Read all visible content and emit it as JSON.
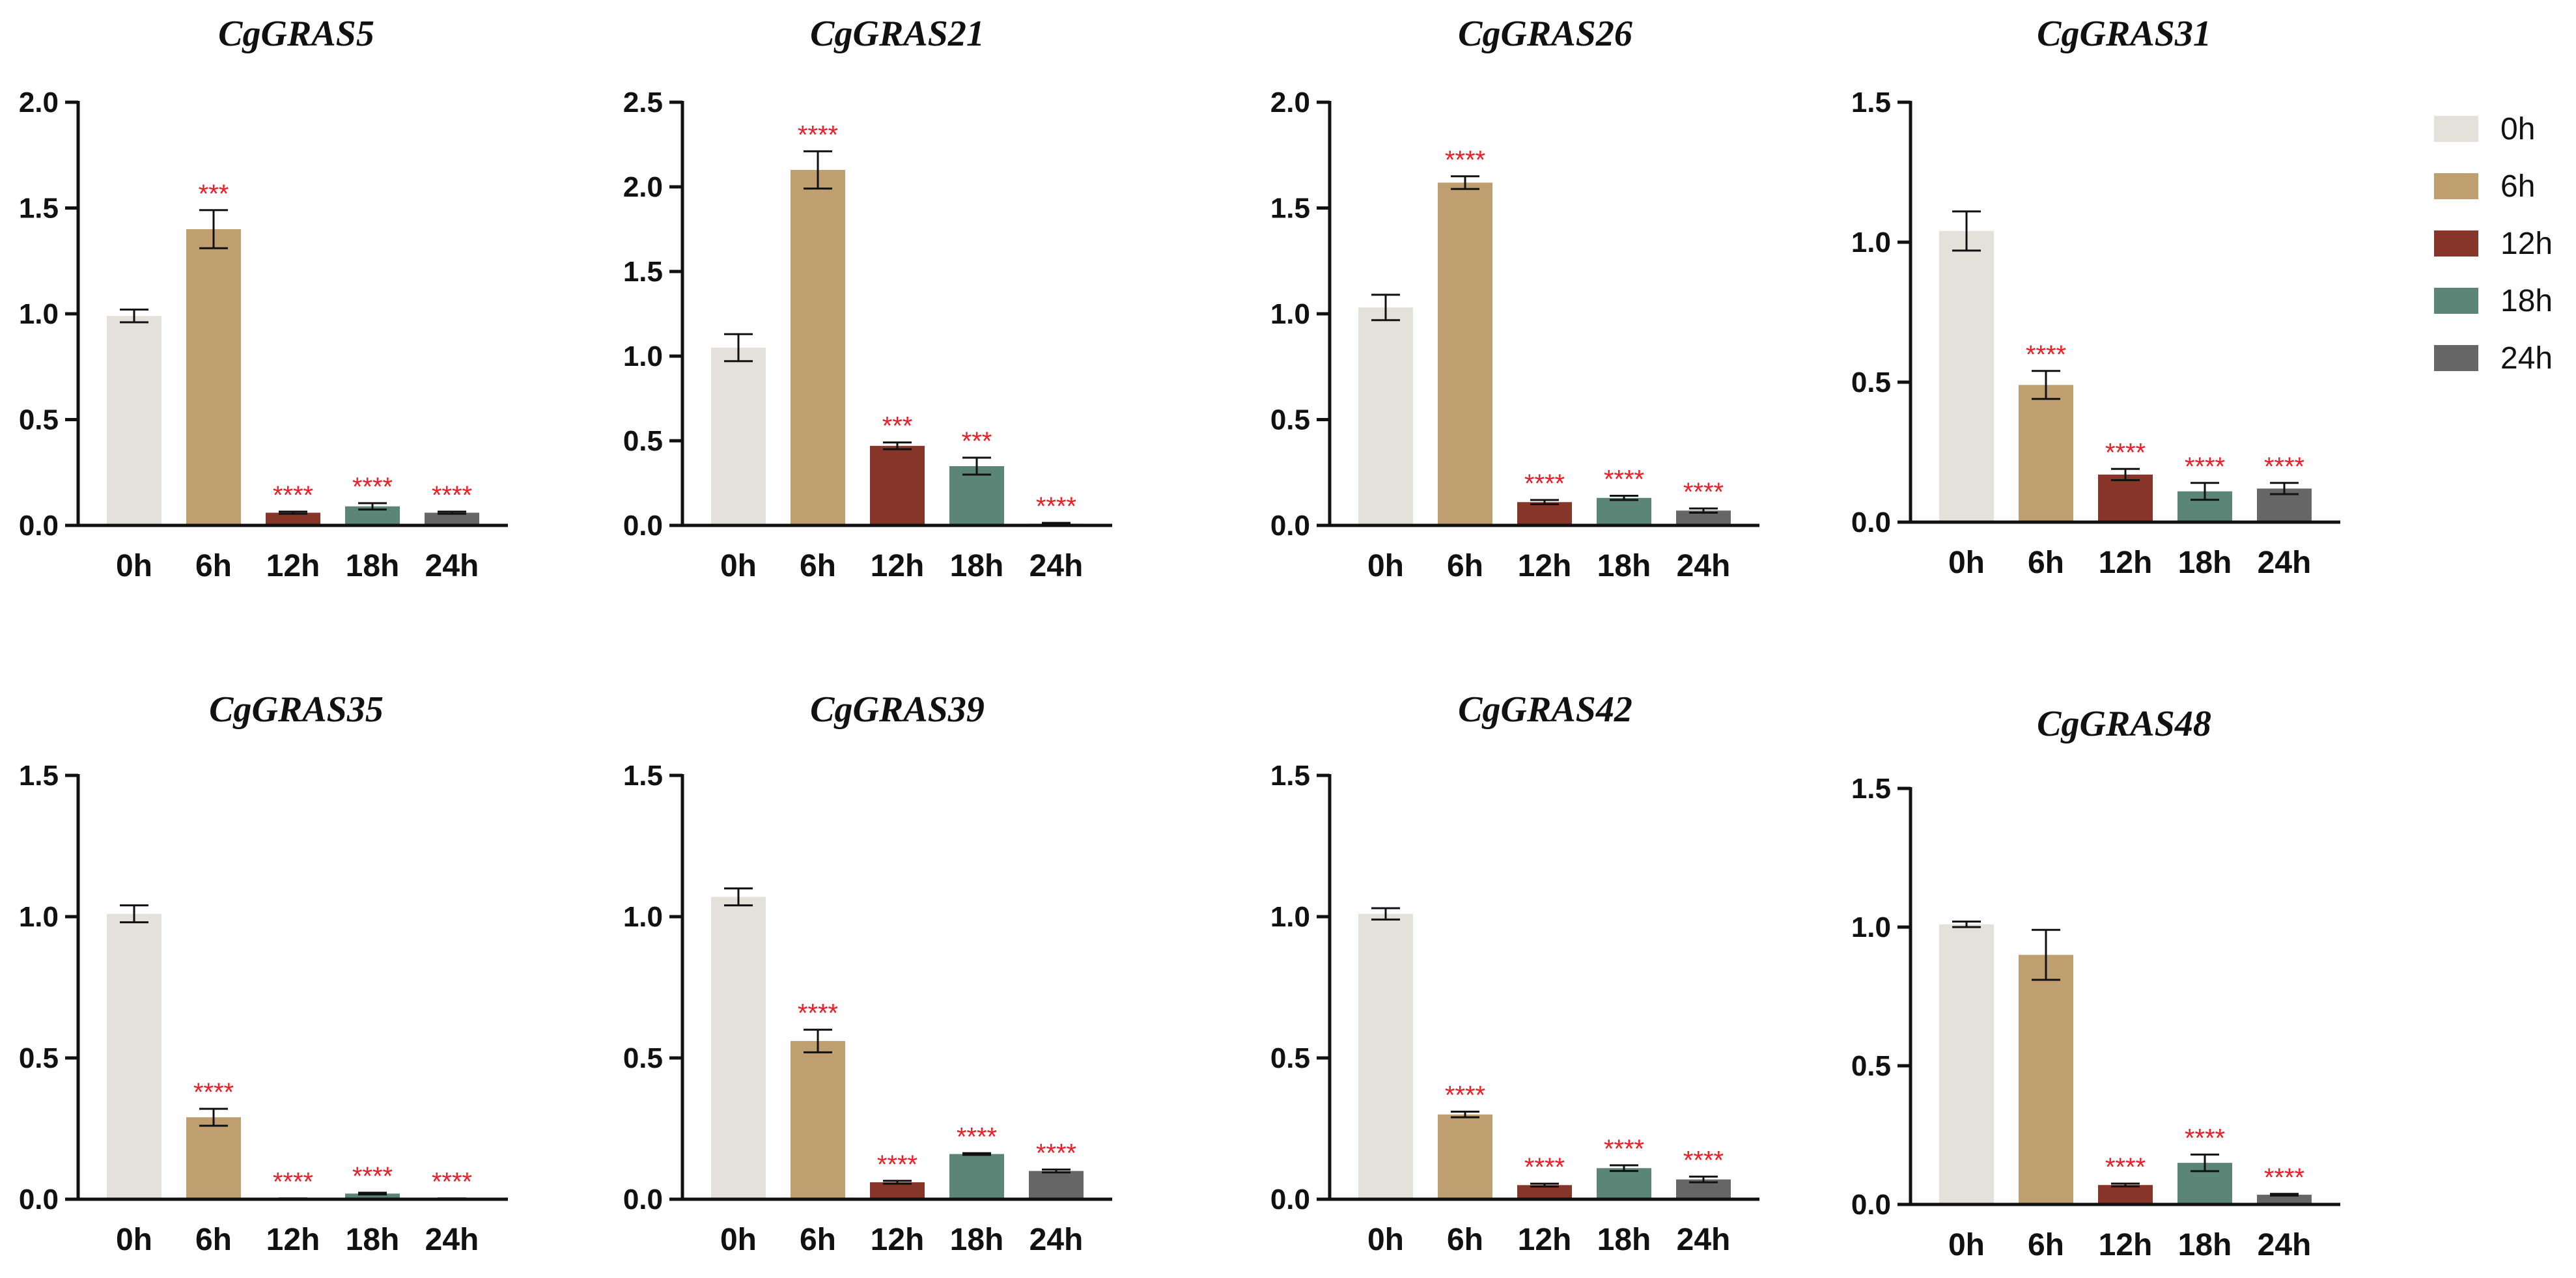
{
  "chart_data": [
    {
      "type": "bar",
      "title": "CgGRAS5",
      "categories": [
        "0h",
        "6h",
        "12h",
        "18h",
        "24h"
      ],
      "ylim": [
        0,
        2.0
      ],
      "yticks": [
        "0.0",
        "0.5",
        "1.0",
        "1.5",
        "2.0"
      ],
      "values": [
        0.99,
        1.4,
        0.06,
        0.09,
        0.06
      ],
      "errors": [
        0.03,
        0.09,
        0.005,
        0.015,
        0.005
      ],
      "significance": [
        "",
        "***",
        "****",
        "****",
        "****"
      ]
    },
    {
      "type": "bar",
      "title": "CgGRAS21",
      "categories": [
        "0h",
        "6h",
        "12h",
        "18h",
        "24h"
      ],
      "ylim": [
        0,
        2.5
      ],
      "yticks": [
        "0.0",
        "0.5",
        "1.0",
        "1.5",
        "2.0",
        "2.5"
      ],
      "values": [
        1.05,
        2.1,
        0.47,
        0.35,
        0.01
      ],
      "errors": [
        0.08,
        0.11,
        0.02,
        0.05,
        0.005
      ],
      "significance": [
        "",
        "****",
        "***",
        "***",
        "****"
      ]
    },
    {
      "type": "bar",
      "title": "CgGRAS26",
      "categories": [
        "0h",
        "6h",
        "12h",
        "18h",
        "24h"
      ],
      "ylim": [
        0,
        2.0
      ],
      "yticks": [
        "0.0",
        "0.5",
        "1.0",
        "1.5",
        "2.0"
      ],
      "values": [
        1.03,
        1.62,
        0.11,
        0.13,
        0.07
      ],
      "errors": [
        0.06,
        0.03,
        0.01,
        0.01,
        0.01
      ],
      "significance": [
        "",
        "****",
        "****",
        "****",
        "****"
      ]
    },
    {
      "type": "bar",
      "title": "CgGRAS31",
      "categories": [
        "0h",
        "6h",
        "12h",
        "18h",
        "24h"
      ],
      "ylim": [
        0,
        1.5
      ],
      "yticks": [
        "0.0",
        "0.5",
        "1.0",
        "1.5"
      ],
      "values": [
        1.04,
        0.49,
        0.17,
        0.11,
        0.12
      ],
      "errors": [
        0.07,
        0.05,
        0.02,
        0.03,
        0.02
      ],
      "significance": [
        "",
        "****",
        "****",
        "****",
        "****"
      ]
    },
    {
      "type": "bar",
      "title": "CgGRAS35",
      "categories": [
        "0h",
        "6h",
        "12h",
        "18h",
        "24h"
      ],
      "ylim": [
        0,
        1.5
      ],
      "yticks": [
        "0.0",
        "0.5",
        "1.0",
        "1.5"
      ],
      "values": [
        1.01,
        0.29,
        0.002,
        0.02,
        0.002
      ],
      "errors": [
        0.03,
        0.03,
        0.001,
        0.003,
        0.001
      ],
      "significance": [
        "",
        "****",
        "****",
        "****",
        "****"
      ]
    },
    {
      "type": "bar",
      "title": "CgGRAS39",
      "categories": [
        "0h",
        "6h",
        "12h",
        "18h",
        "24h"
      ],
      "ylim": [
        0,
        1.5
      ],
      "yticks": [
        "0.0",
        "0.5",
        "1.0",
        "1.5"
      ],
      "values": [
        1.07,
        0.56,
        0.06,
        0.16,
        0.1
      ],
      "errors": [
        0.03,
        0.04,
        0.005,
        0.003,
        0.005
      ],
      "significance": [
        "",
        "****",
        "****",
        "****",
        "****"
      ]
    },
    {
      "type": "bar",
      "title": "CgGRAS42",
      "categories": [
        "0h",
        "6h",
        "12h",
        "18h",
        "24h"
      ],
      "ylim": [
        0,
        1.5
      ],
      "yticks": [
        "0.0",
        "0.5",
        "1.0",
        "1.5"
      ],
      "values": [
        1.01,
        0.3,
        0.05,
        0.11,
        0.07
      ],
      "errors": [
        0.02,
        0.01,
        0.005,
        0.01,
        0.01
      ],
      "significance": [
        "",
        "****",
        "****",
        "****",
        "****"
      ]
    },
    {
      "type": "bar",
      "title": "CgGRAS48",
      "categories": [
        "0h",
        "6h",
        "12h",
        "18h",
        "24h"
      ],
      "ylim": [
        0,
        1.5
      ],
      "yticks": [
        "0.0",
        "0.5",
        "1.0",
        "1.5"
      ],
      "values": [
        1.01,
        0.9,
        0.07,
        0.15,
        0.035
      ],
      "errors": [
        0.01,
        0.09,
        0.005,
        0.03,
        0.003
      ],
      "significance": [
        "",
        "",
        "****",
        "****",
        "****"
      ]
    }
  ],
  "legend": {
    "entries": [
      {
        "label": "0h",
        "color": "#e4e0da"
      },
      {
        "label": "6h",
        "color": "#bf9f70"
      },
      {
        "label": "12h",
        "color": "#873528"
      },
      {
        "label": "18h",
        "color": "#5a8577"
      },
      {
        "label": "24h",
        "color": "#666666"
      }
    ]
  },
  "colors": {
    "significance": "#e8202a",
    "axis": "#111111"
  }
}
